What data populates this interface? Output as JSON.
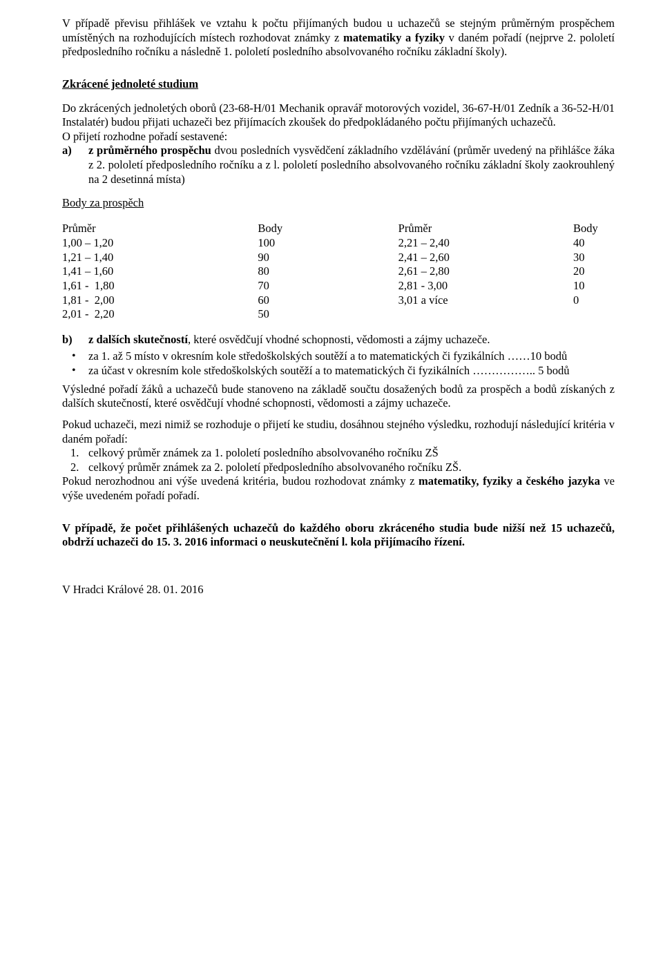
{
  "intro_para": {
    "pre": "V případě převisu přihlášek ve vztahu k počtu přijímaných budou u uchazečů se stejným průměrným prospěchem umístěných na rozhodujících místech rozhodovat známky z ",
    "bold1": "matematiky a fyziky",
    "mid": " v daném pořadí (nejprve 2. pololetí předposledního ročníku a následně 1. pololetí posledního absolvovaného ročníku základní školy)."
  },
  "section_title": "Zkrácené jednoleté studium",
  "zk_para": "Do zkrácených jednoletých oborů (23-68-H/01 Mechanik opravář motorových vozidel, 36-67-H/01 Zedník a 36-52-H/01 Instalatér) budou přijati uchazeči bez přijímacích zkoušek do předpokládaného počtu přijímaných uchazečů.",
  "order_line": "O přijetí rozhodne pořadí sestavené:",
  "item_a": {
    "marker": "a)",
    "bold": "z průměrného prospěchu",
    "rest": " dvou posledních vysvědčení základního vzdělávání (průměr uvedený na přihlášce žáka z 2. pololetí předposledního ročníku a z l. pololetí posledního absolvovaného ročníku základní školy zaokrouhlený na 2 desetinná místa)"
  },
  "body_za": "Body za prospěch",
  "table": {
    "h1": "Průměr",
    "h2": "Body",
    "h3": "Průměr",
    "h4": "Body",
    "left": [
      {
        "r": "1,00 – 1,20",
        "p": "100"
      },
      {
        "r": "1,21 – 1,40",
        "p": "90"
      },
      {
        "r": "1,41 – 1,60",
        "p": "80"
      },
      {
        "r": "1,61 -  1,80",
        "p": "70"
      },
      {
        "r": "1,81 -  2,00",
        "p": "60"
      },
      {
        "r": "2,01 -  2,20",
        "p": "50"
      }
    ],
    "right": [
      {
        "r": "2,21 – 2,40",
        "p": "40"
      },
      {
        "r": "2,41 – 2,60",
        "p": "30"
      },
      {
        "r": "2,61 – 2,80",
        "p": "20"
      },
      {
        "r": "2,81 - 3,00",
        "p": "10"
      },
      {
        "r": "3,01 a více",
        "p": "0"
      }
    ]
  },
  "item_b": {
    "marker": "b)",
    "bold": "z dalších skutečností",
    "rest": ", které osvědčují vhodné schopnosti, vědomosti a zájmy uchazeče."
  },
  "bullets": [
    "za 1. až 5 místo v okresním kole středoškolských soutěží a to matematických či fyzikálních ……10 bodů",
    "za účast v okresním kole středoškolských soutěží a to matematických či fyzikálních ……………..   5 bodů"
  ],
  "after_bullets": "Výsledné pořadí žáků a uchazečů bude stanoveno na základě součtu dosažených bodů za prospěch a bodů získaných z dalších skutečností, které osvědčují vhodné schopnosti, vědomosti a zájmy uchazeče.",
  "tie_para": "Pokud uchazeči, mezi nimiž se rozhoduje o přijetí ke studiu, dosáhnou stejného výsledku, rozhodují následující kritéria v daném pořadí:",
  "tie_list": [
    "celkový průměr známek za 1. pololetí posledního absolvovaného ročníku ZŠ",
    "celkový průměr známek za 2. pololetí předposledního absolvovaného ročníku ZŠ."
  ],
  "tie_after": {
    "pre": "Pokud nerozhodnou ani výše uvedená kritéria, budou rozhodovat známky z ",
    "bold": "matematiky, fyziky a českého jazyka",
    "post": " ve výše uvedeném pořadí pořadí."
  },
  "final_bold": "V případě, že počet přihlášených uchazečů do každého oboru zkráceného studia bude nižší než 15 uchazečů, obdrží uchazeči do 15. 3. 2016 informaci o neuskutečnění l. kola přijímacího řízení.",
  "date": "V Hradci Králové 28. 01. 2016"
}
